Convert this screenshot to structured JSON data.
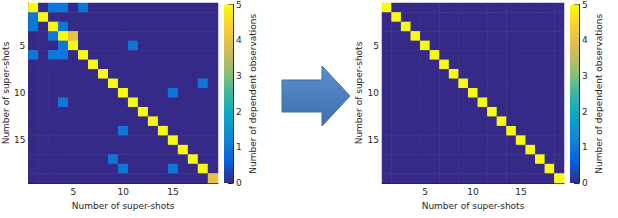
{
  "chart_data": [
    {
      "type": "heatmap",
      "xlabel": "Number of super-shots",
      "ylabel": "Number of super-shots",
      "x": [
        1,
        2,
        3,
        4,
        5,
        6,
        7,
        8,
        9,
        10,
        11,
        12,
        13,
        14,
        15,
        16,
        17,
        18,
        19
      ],
      "y": [
        1,
        2,
        3,
        4,
        5,
        6,
        7,
        8,
        9,
        10,
        11,
        12,
        13,
        14,
        15,
        16,
        17,
        18,
        19
      ],
      "xticks": [
        5,
        10,
        15
      ],
      "yticks": [
        5,
        10,
        15
      ],
      "z": [
        [
          5,
          0,
          1,
          1,
          0,
          1,
          0,
          0,
          0,
          0,
          0,
          0,
          0,
          0,
          0,
          0,
          0,
          0,
          0
        ],
        [
          1,
          5,
          0,
          0,
          0,
          0,
          0,
          0,
          0,
          0,
          0,
          0,
          0,
          0,
          0,
          0,
          0,
          0,
          0
        ],
        [
          1,
          0,
          5,
          1,
          0,
          0,
          0,
          0,
          0,
          0,
          0,
          0,
          0,
          0,
          0,
          0,
          0,
          0,
          0
        ],
        [
          0,
          0,
          1,
          5,
          4,
          0,
          0,
          0,
          0,
          0,
          0,
          0,
          0,
          0,
          0,
          0,
          0,
          0,
          0
        ],
        [
          0,
          0,
          0,
          1,
          5,
          0,
          0,
          0,
          0,
          0,
          1,
          0,
          0,
          0,
          0,
          0,
          0,
          0,
          0
        ],
        [
          1,
          0,
          1,
          1,
          0,
          5,
          0,
          0,
          0,
          0,
          0,
          0,
          0,
          0,
          0,
          0,
          0,
          0,
          0
        ],
        [
          0,
          0,
          0,
          0,
          0,
          0,
          5,
          0,
          0,
          0,
          0,
          0,
          0,
          0,
          0,
          0,
          0,
          0,
          0
        ],
        [
          0,
          0,
          0,
          0,
          0,
          0,
          0,
          5,
          0,
          0,
          0,
          0,
          0,
          0,
          0,
          0,
          0,
          0,
          0
        ],
        [
          0,
          0,
          0,
          0,
          0,
          0,
          0,
          0,
          5,
          0,
          0,
          0,
          0,
          0,
          0,
          0,
          0,
          1,
          0
        ],
        [
          0,
          0,
          0,
          0,
          0,
          0,
          0,
          0,
          0,
          5,
          0,
          0,
          0,
          0,
          1,
          0,
          0,
          0,
          0
        ],
        [
          0,
          0,
          0,
          1,
          0,
          0,
          0,
          0,
          0,
          0,
          5,
          0,
          0,
          0,
          0,
          0,
          0,
          0,
          0
        ],
        [
          0,
          0,
          0,
          0,
          0,
          0,
          0,
          0,
          0,
          0,
          0,
          5,
          0,
          0,
          0,
          0,
          0,
          0,
          0
        ],
        [
          0,
          0,
          0,
          0,
          0,
          0,
          0,
          0,
          0,
          0,
          0,
          0,
          5,
          0,
          0,
          0,
          0,
          0,
          0
        ],
        [
          0,
          0,
          0,
          0,
          0,
          0,
          0,
          0,
          0,
          1,
          0,
          0,
          0,
          5,
          0,
          0,
          0,
          0,
          0
        ],
        [
          0,
          0,
          0,
          0,
          0,
          0,
          0,
          0,
          0,
          0,
          0,
          0,
          0,
          0,
          5,
          0,
          0,
          0,
          0
        ],
        [
          0,
          0,
          0,
          0,
          0,
          0,
          0,
          0,
          0,
          0,
          0,
          0,
          0,
          0,
          0,
          5,
          0,
          0,
          0
        ],
        [
          0,
          0,
          0,
          0,
          0,
          0,
          0,
          0,
          1,
          0,
          0,
          0,
          0,
          0,
          0,
          0,
          5,
          0,
          0
        ],
        [
          0,
          0,
          0,
          0,
          0,
          0,
          0,
          0,
          0,
          1,
          0,
          0,
          0,
          0,
          1,
          0,
          0,
          5,
          0
        ],
        [
          0,
          0,
          0,
          0,
          0,
          0,
          0,
          0,
          0,
          0,
          0,
          0,
          0,
          0,
          0,
          0,
          0,
          0,
          4
        ]
      ],
      "colorbar": {
        "label": "Number of dependent observations",
        "clim": [
          0,
          5
        ],
        "ticks": [
          0,
          1,
          2,
          3,
          4,
          5
        ]
      }
    },
    {
      "type": "heatmap",
      "xlabel": "Number of super-shots",
      "ylabel": "Number of super-shots",
      "x": [
        1,
        2,
        3,
        4,
        5,
        6,
        7,
        8,
        9,
        10,
        11,
        12,
        13,
        14,
        15,
        16,
        17,
        18,
        19
      ],
      "y": [
        1,
        2,
        3,
        4,
        5,
        6,
        7,
        8,
        9,
        10,
        11,
        12,
        13,
        14,
        15,
        16,
        17,
        18,
        19
      ],
      "xticks": [
        5,
        10,
        15
      ],
      "yticks": [
        5,
        10,
        15
      ],
      "z": [
        [
          5,
          0,
          0,
          0,
          0,
          0,
          0,
          0,
          0,
          0,
          0,
          0,
          0,
          0,
          0,
          0,
          0,
          0,
          0
        ],
        [
          0,
          5,
          0,
          0,
          0,
          0,
          0,
          0,
          0,
          0,
          0,
          0,
          0,
          0,
          0,
          0,
          0,
          0,
          0
        ],
        [
          0,
          0,
          5,
          0,
          0,
          0,
          0,
          0,
          0,
          0,
          0,
          0,
          0,
          0,
          0,
          0,
          0,
          0,
          0
        ],
        [
          0,
          0,
          0,
          5,
          0,
          0,
          0,
          0,
          0,
          0,
          0,
          0,
          0,
          0,
          0,
          0,
          0,
          0,
          0
        ],
        [
          0,
          0,
          0,
          0,
          5,
          0,
          0,
          0,
          0,
          0,
          0,
          0,
          0,
          0,
          0,
          0,
          0,
          0,
          0
        ],
        [
          0,
          0,
          0,
          0,
          0,
          5,
          0,
          0,
          0,
          0,
          0,
          0,
          0,
          0,
          0,
          0,
          0,
          0,
          0
        ],
        [
          0,
          0,
          0,
          0,
          0,
          0,
          5,
          0,
          0,
          0,
          0,
          0,
          0,
          0,
          0,
          0,
          0,
          0,
          0
        ],
        [
          0,
          0,
          0,
          0,
          0,
          0,
          0,
          5,
          0,
          0,
          0,
          0,
          0,
          0,
          0,
          0,
          0,
          0,
          0
        ],
        [
          0,
          0,
          0,
          0,
          0,
          0,
          0,
          0,
          5,
          0,
          0,
          0,
          0,
          0,
          0,
          0,
          0,
          0,
          0
        ],
        [
          0,
          0,
          0,
          0,
          0,
          0,
          0,
          0,
          0,
          5,
          0,
          0,
          0,
          0,
          0,
          0,
          0,
          0,
          0
        ],
        [
          0,
          0,
          0,
          0,
          0,
          0,
          0,
          0,
          0,
          0,
          5,
          0,
          0,
          0,
          0,
          0,
          0,
          0,
          0
        ],
        [
          0,
          0,
          0,
          0,
          0,
          0,
          0,
          0,
          0,
          0,
          0,
          5,
          0,
          0,
          0,
          0,
          0,
          0,
          0
        ],
        [
          0,
          0,
          0,
          0,
          0,
          0,
          0,
          0,
          0,
          0,
          0,
          0,
          5,
          0,
          0,
          0,
          0,
          0,
          0
        ],
        [
          0,
          0,
          0,
          0,
          0,
          0,
          0,
          0,
          0,
          0,
          0,
          0,
          0,
          5,
          0,
          0,
          0,
          0,
          0
        ],
        [
          0,
          0,
          0,
          0,
          0,
          0,
          0,
          0,
          0,
          0,
          0,
          0,
          0,
          0,
          5,
          0,
          0,
          0,
          0
        ],
        [
          0,
          0,
          0,
          0,
          0,
          0,
          0,
          0,
          0,
          0,
          0,
          0,
          0,
          0,
          0,
          5,
          0,
          0,
          0
        ],
        [
          0,
          0,
          0,
          0,
          0,
          0,
          0,
          0,
          0,
          0,
          0,
          0,
          0,
          0,
          0,
          0,
          5,
          0,
          0
        ],
        [
          0,
          0,
          0,
          0,
          0,
          0,
          0,
          0,
          0,
          0,
          0,
          0,
          0,
          0,
          0,
          0,
          0,
          5,
          0
        ],
        [
          0,
          0,
          0,
          0,
          0,
          0,
          0,
          0,
          0,
          0,
          0,
          0,
          0,
          0,
          0,
          0,
          0,
          0,
          5
        ]
      ],
      "colorbar": {
        "label": "Number of dependent observations",
        "clim": [
          0,
          5
        ],
        "ticks": [
          0,
          1,
          2,
          3,
          4,
          5
        ]
      }
    }
  ]
}
